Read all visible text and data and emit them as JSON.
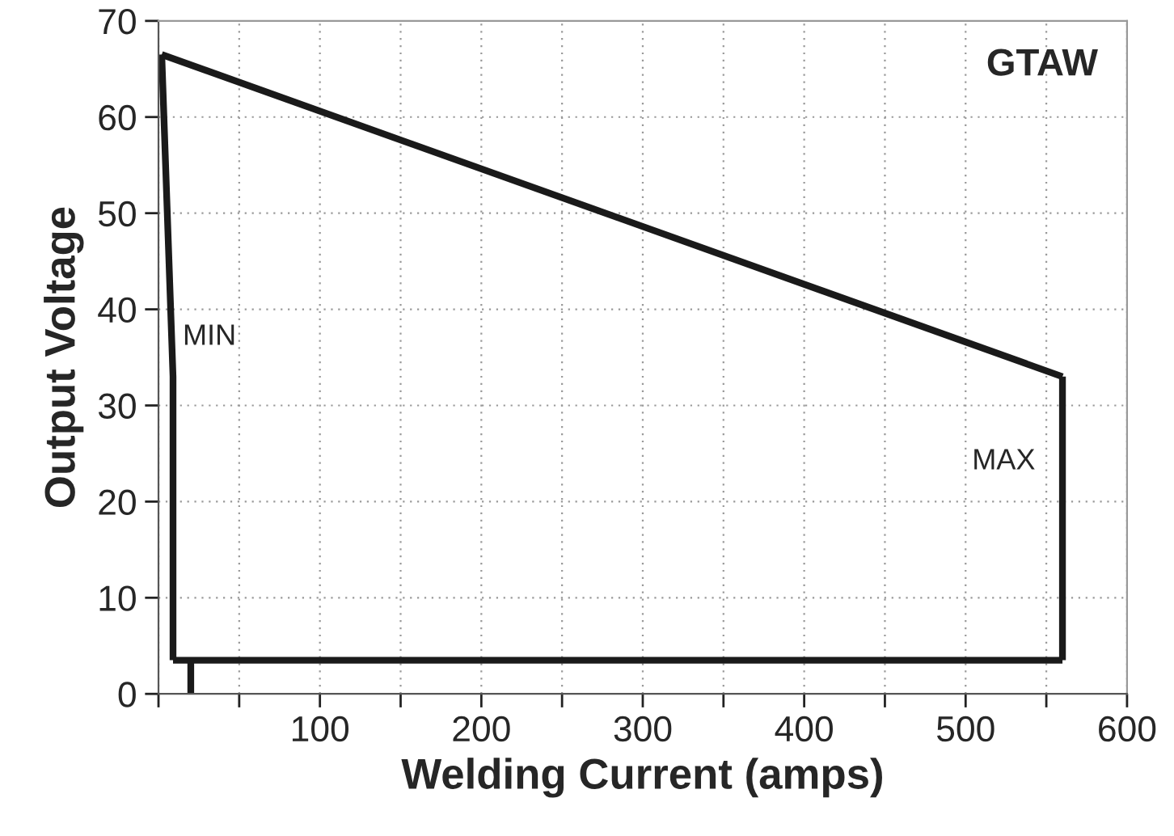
{
  "chart_data": {
    "type": "line",
    "xlabel": "Welding Current (amps)",
    "ylabel": "Output Voltage",
    "series": [
      {
        "color": "#1a1a1a",
        "x": [
          2,
          560
        ],
        "values": [
          66.5,
          33
        ]
      },
      {
        "color": "#1a1a1a",
        "x": [
          560,
          560
        ],
        "values": [
          33,
          3.5
        ]
      },
      {
        "color": "#1a1a1a",
        "x": [
          9,
          560
        ],
        "values": [
          3.5,
          3.5
        ]
      },
      {
        "color": "#1a1a1a",
        "x": [
          2,
          9,
          9
        ],
        "values": [
          66.5,
          33,
          3.5
        ]
      },
      {
        "color": "#1a1a1a",
        "x": [
          20,
          20
        ],
        "values": [
          0,
          3.5
        ]
      }
    ],
    "xlim": [
      0,
      600
    ],
    "ylim": [
      0,
      70
    ],
    "xticks": [
      {
        "value": 0,
        "label": null
      },
      {
        "value": 50,
        "label": null
      },
      100,
      {
        "value": 150,
        "label": null
      },
      200,
      {
        "value": 250,
        "label": null
      },
      300,
      {
        "value": 350,
        "label": null
      },
      400,
      {
        "value": 450,
        "label": null
      },
      500,
      {
        "value": 550,
        "label": null
      },
      600
    ],
    "yticks": [
      0,
      10,
      20,
      30,
      40,
      50,
      60,
      70
    ],
    "grid": true,
    "line_style": "solid",
    "marker": "none",
    "annotations": [
      "GTAW",
      "MIN",
      "MAX"
    ]
  }
}
